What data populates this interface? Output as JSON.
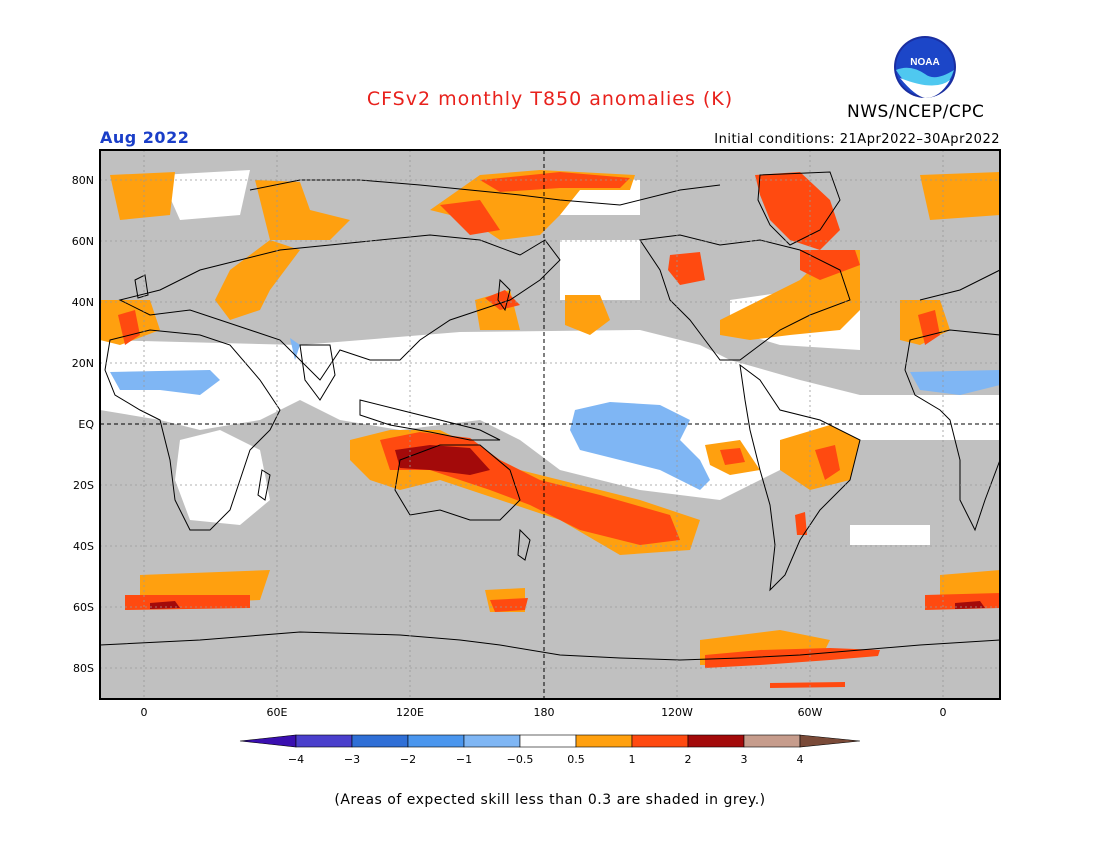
{
  "header": {
    "title": "CFSv2 monthly T850 anomalies (K)",
    "agency": "NWS/NCEP/CPC",
    "logo_text": "NOAA",
    "valid_month": "Aug 2022",
    "initial_conditions": "Initial conditions: 21Apr2022–30Apr2022"
  },
  "map": {
    "lat_labels": [
      "80N",
      "60N",
      "40N",
      "20N",
      "EQ",
      "20S",
      "40S",
      "60S",
      "80S"
    ],
    "lon_labels": [
      "0",
      "60E",
      "120E",
      "180",
      "120W",
      "60W",
      "0"
    ],
    "colors": {
      "grey": "#c0c0c0",
      "land_outline": "#000000"
    }
  },
  "colorbar": {
    "labels": [
      "−4",
      "−3",
      "−2",
      "−1",
      "−0.5",
      "0.5",
      "1",
      "2",
      "3",
      "4"
    ],
    "colors": [
      "#3a0fb0",
      "#4a3fcc",
      "#2f6fd6",
      "#4a96ee",
      "#7fb6f4",
      "#ffffff",
      "#ffa00f",
      "#ff4a10",
      "#a30a0a",
      "#c69c8c",
      "#7a4a38"
    ]
  },
  "footnote": "(Areas of expected skill less than 0.3 are shaded in grey.)"
}
